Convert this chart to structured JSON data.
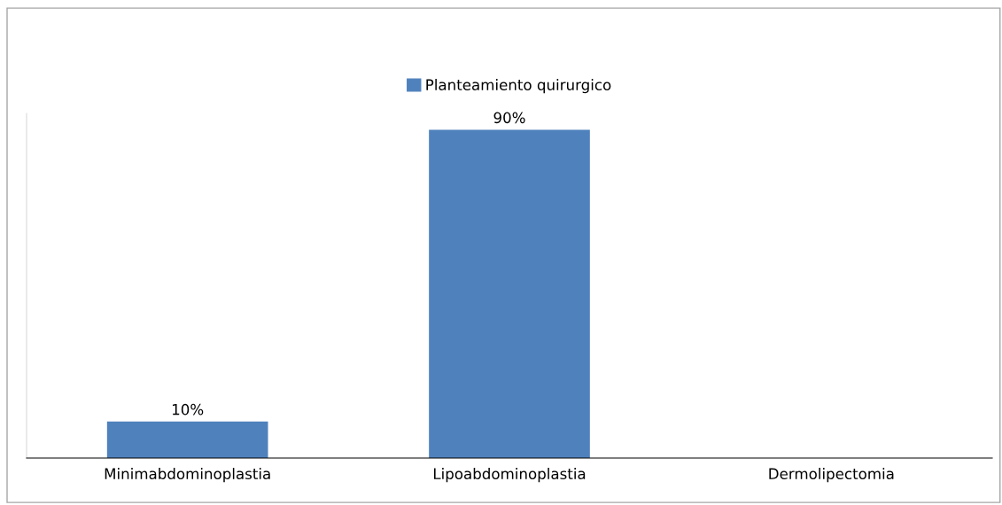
{
  "chart_data": {
    "type": "bar",
    "categories": [
      "Minimabdominoplastia",
      "Lipoabdominoplastia",
      "Dermolipectomia"
    ],
    "series": [
      {
        "name": "Planteamiento quirurgico",
        "color": "#4f81bd",
        "values": [
          10,
          90,
          0
        ],
        "value_labels": [
          "10%",
          "90%",
          null
        ]
      }
    ],
    "legend": "top",
    "grid": false
  }
}
